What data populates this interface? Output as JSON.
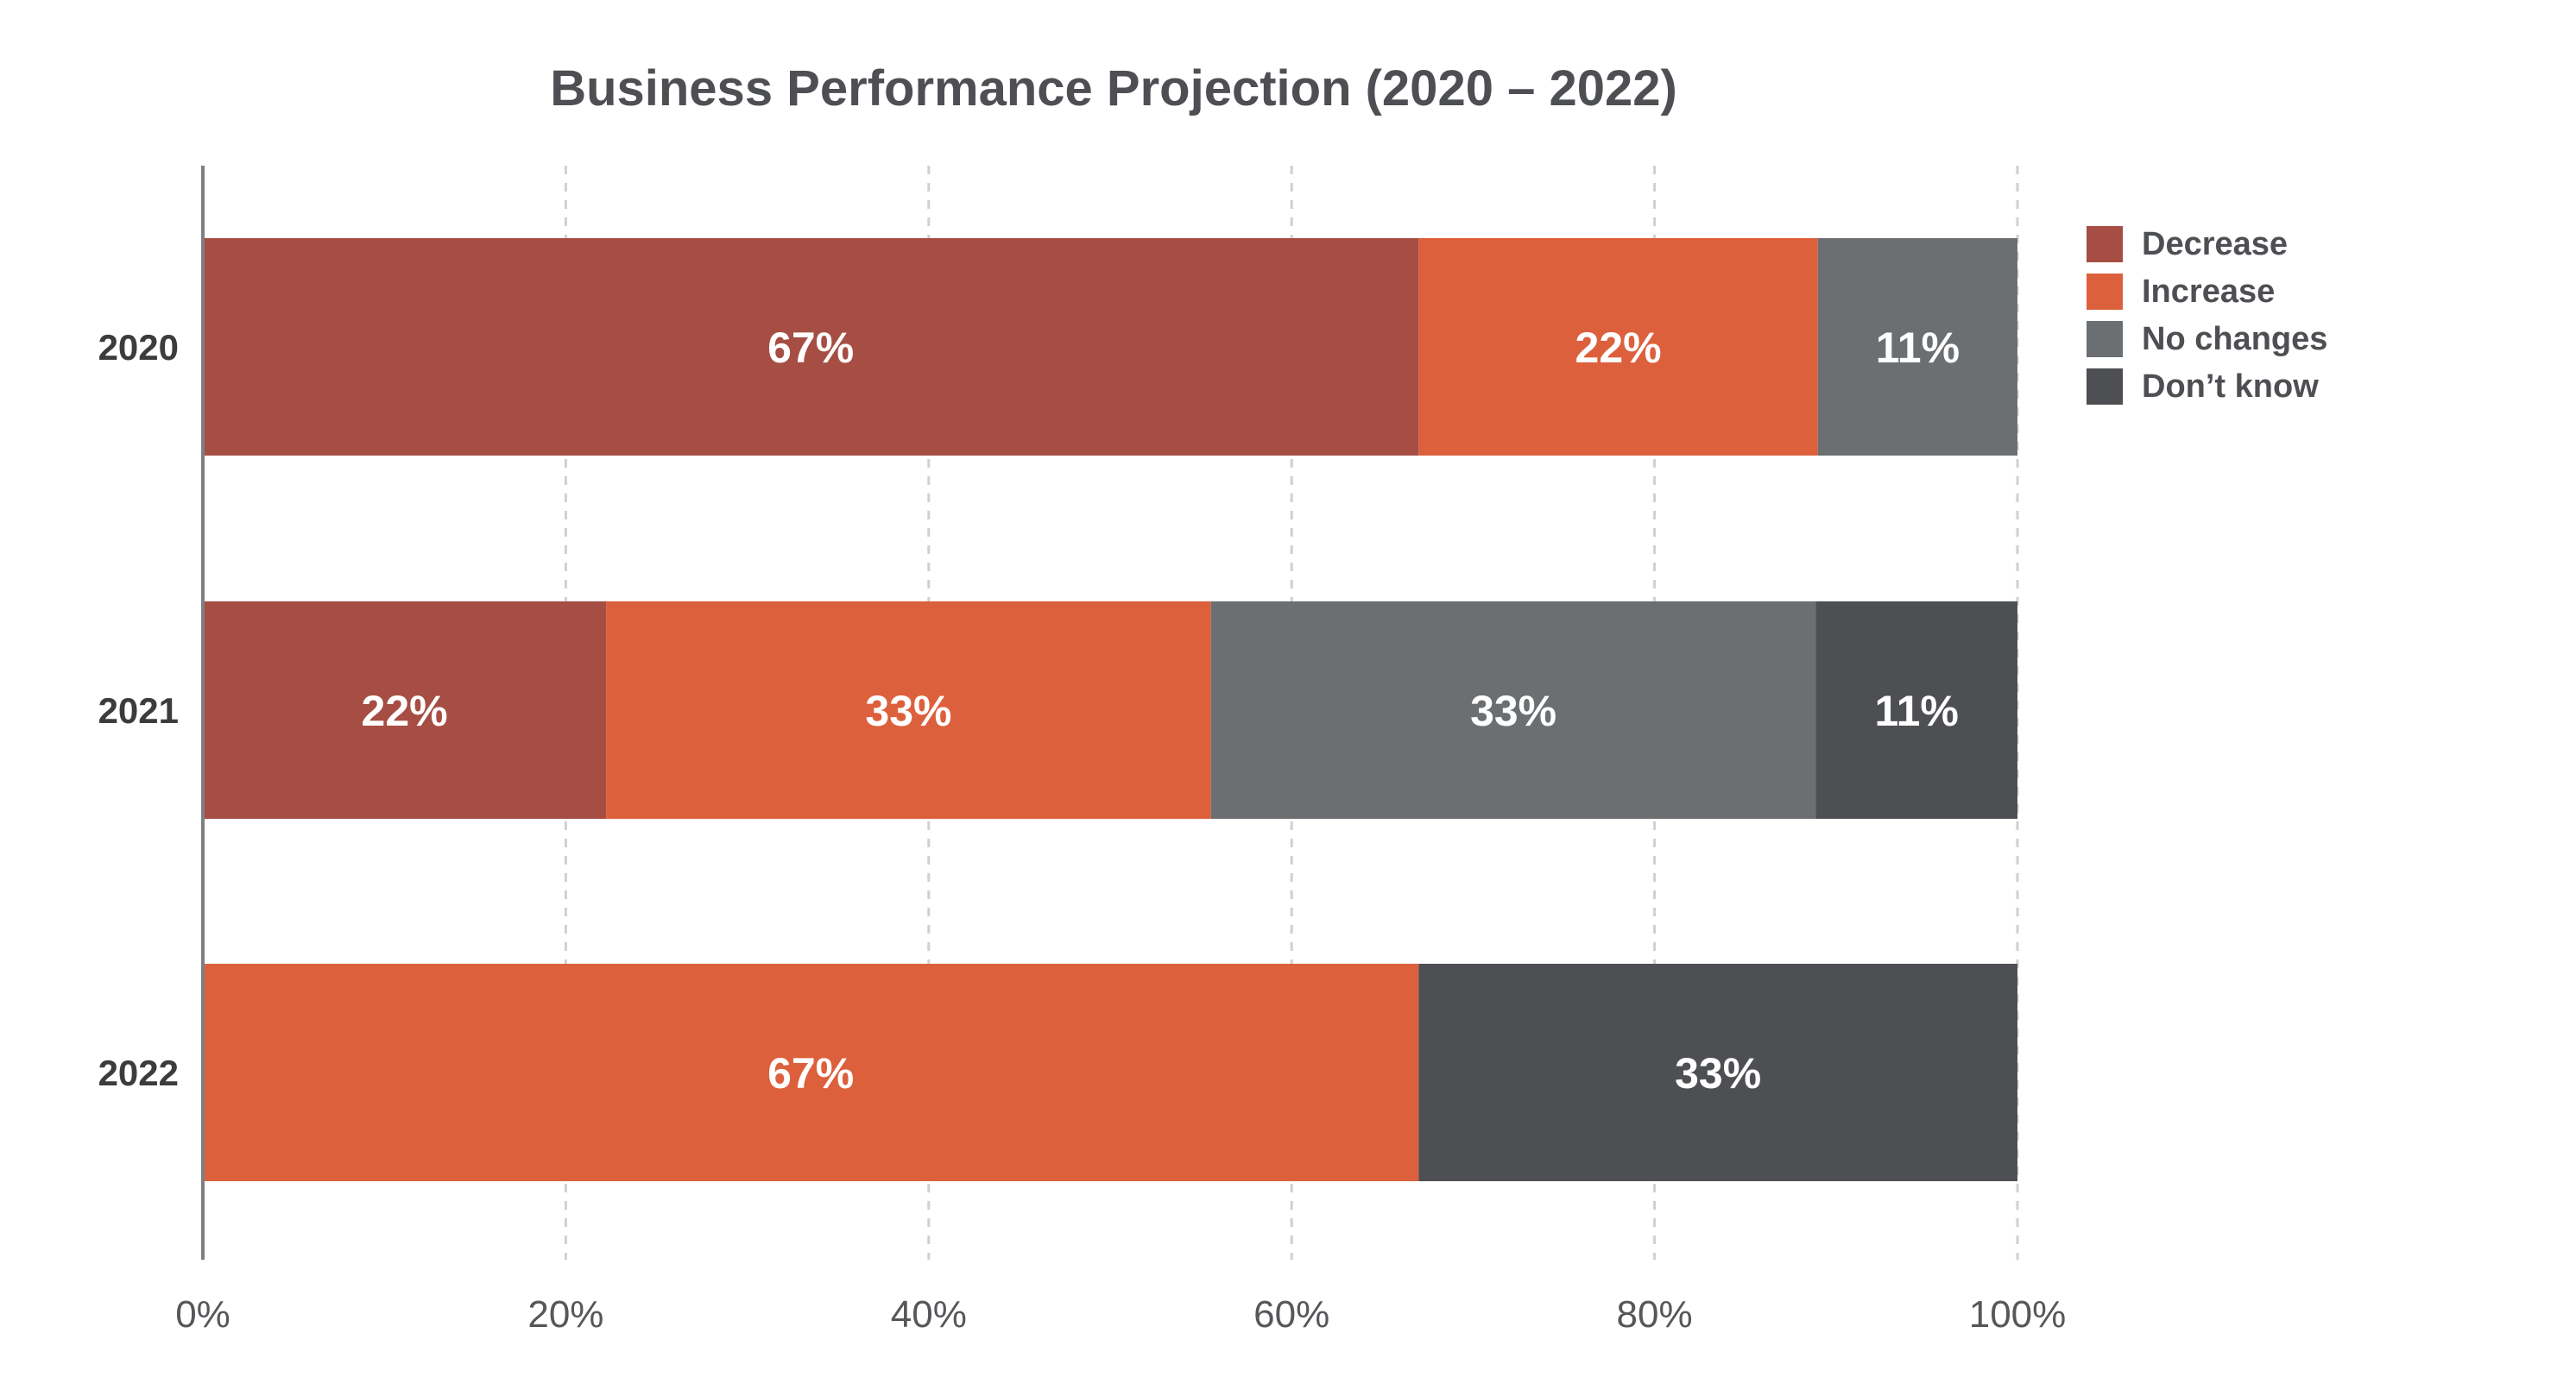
{
  "chart_data": {
    "type": "bar",
    "orientation": "horizontal",
    "stacked": true,
    "title": "Business Performance Projection (2020 – 2022)",
    "xlabel": "",
    "ylabel": "",
    "categories": [
      "2020",
      "2021",
      "2022"
    ],
    "xlim": [
      0,
      100
    ],
    "x_ticks": [
      "0%",
      "20%",
      "40%",
      "60%",
      "80%",
      "100%"
    ],
    "x_tick_values": [
      0,
      20,
      40,
      60,
      80,
      100
    ],
    "grid": "vertical dashed",
    "legend_position": "top-right",
    "series": [
      {
        "name": "Decrease",
        "color": "#a64e43",
        "values": [
          67,
          22,
          0
        ],
        "labels": [
          "67%",
          "22%",
          ""
        ]
      },
      {
        "name": "Increase",
        "color": "#dd603c",
        "values": [
          22,
          33,
          67
        ],
        "labels": [
          "22%",
          "33%",
          "67%"
        ]
      },
      {
        "name": "No changes",
        "color": "#6c6f72",
        "values": [
          11,
          33,
          0
        ],
        "labels": [
          "11%",
          "33%",
          ""
        ]
      },
      {
        "name": "Don’t know",
        "color": "#4d4f52",
        "values": [
          0,
          11,
          33
        ],
        "labels": [
          "",
          "11%",
          "33%"
        ]
      }
    ]
  }
}
